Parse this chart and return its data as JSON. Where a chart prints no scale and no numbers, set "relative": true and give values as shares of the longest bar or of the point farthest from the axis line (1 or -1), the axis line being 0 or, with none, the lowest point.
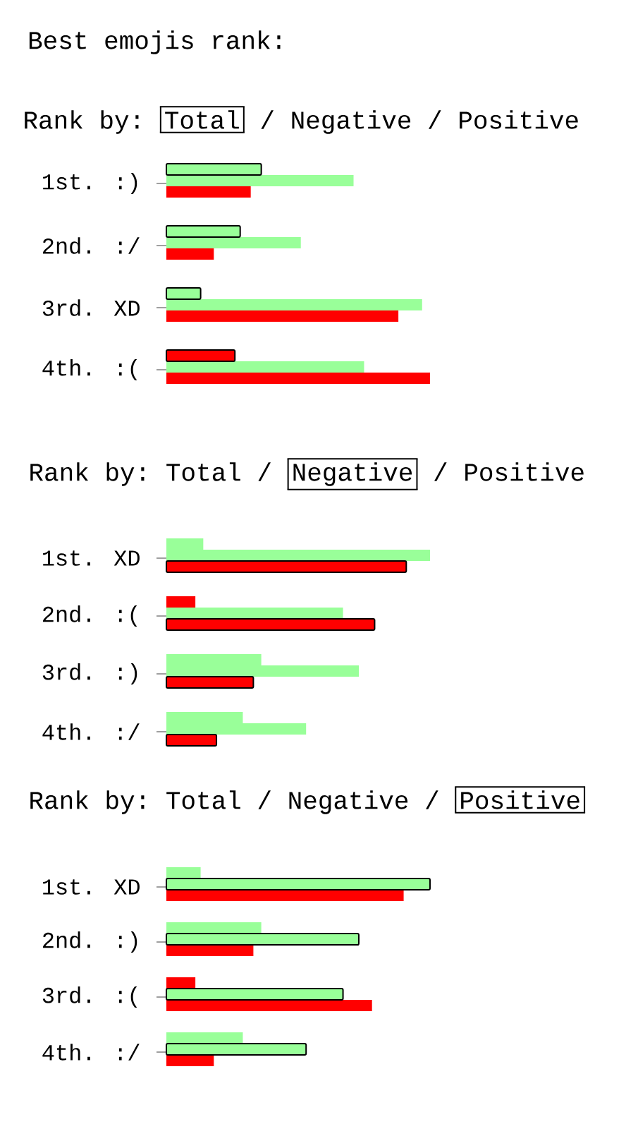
{
  "chart_data": [
    {
      "type": "bar",
      "orientation": "horizontal",
      "relative": true,
      "title": "Best emojis rank:",
      "subtitle": "Rank by:",
      "annotations": [
        "Total",
        "/",
        "Negative",
        "/",
        "Positive"
      ],
      "categories": [
        "1st. :)",
        "2nd. :/",
        "3rd. XD",
        "4th. :("
      ],
      "series": [
        {
          "colors": [
            "#99ff99",
            "#99ff99",
            "#99ff99",
            "#ff0000"
          ],
          "values": [
            0.36,
            0.28,
            0.13,
            0.26
          ],
          "line_style": "solid"
        },
        {
          "color": "#99ff99",
          "values": [
            0.71,
            0.51,
            0.97,
            0.75
          ]
        },
        {
          "color": "#ff0000",
          "values": [
            0.32,
            0.18,
            0.88,
            1.0
          ]
        }
      ]
    },
    {
      "type": "bar",
      "orientation": "horizontal",
      "relative": true,
      "subtitle": "Rank by:",
      "annotations": [
        "Total",
        "/",
        "Negative",
        "/",
        "Positive"
      ],
      "categories": [
        "1st. XD",
        "2nd. :(",
        "3rd. :)",
        "4th. :/"
      ],
      "series": [
        {
          "colors": [
            "#99ff99",
            "#ff0000",
            "#99ff99",
            "#99ff99"
          ],
          "values": [
            0.14,
            0.11,
            0.36,
            0.29
          ]
        },
        {
          "color": "#99ff99",
          "values": [
            1.0,
            0.67,
            0.73,
            0.53
          ]
        },
        {
          "color": "#ff0000",
          "values": [
            0.91,
            0.79,
            0.33,
            0.19
          ],
          "line_style": "solid"
        }
      ]
    },
    {
      "type": "bar",
      "orientation": "horizontal",
      "relative": true,
      "subtitle": "Rank by:",
      "annotations": [
        "Total",
        "/",
        "Negative",
        "/",
        "Positive"
      ],
      "categories": [
        "1st. XD",
        "2nd. :)",
        "3rd. :(",
        "4th. :/"
      ],
      "series": [
        {
          "colors": [
            "#99ff99",
            "#99ff99",
            "#ff0000",
            "#99ff99"
          ],
          "values": [
            0.13,
            0.36,
            0.11,
            0.29
          ]
        },
        {
          "color": "#99ff99",
          "values": [
            1.0,
            0.73,
            0.67,
            0.53
          ],
          "line_style": "solid"
        },
        {
          "color": "#ff0000",
          "values": [
            0.9,
            0.33,
            0.78,
            0.18
          ]
        }
      ]
    }
  ]
}
